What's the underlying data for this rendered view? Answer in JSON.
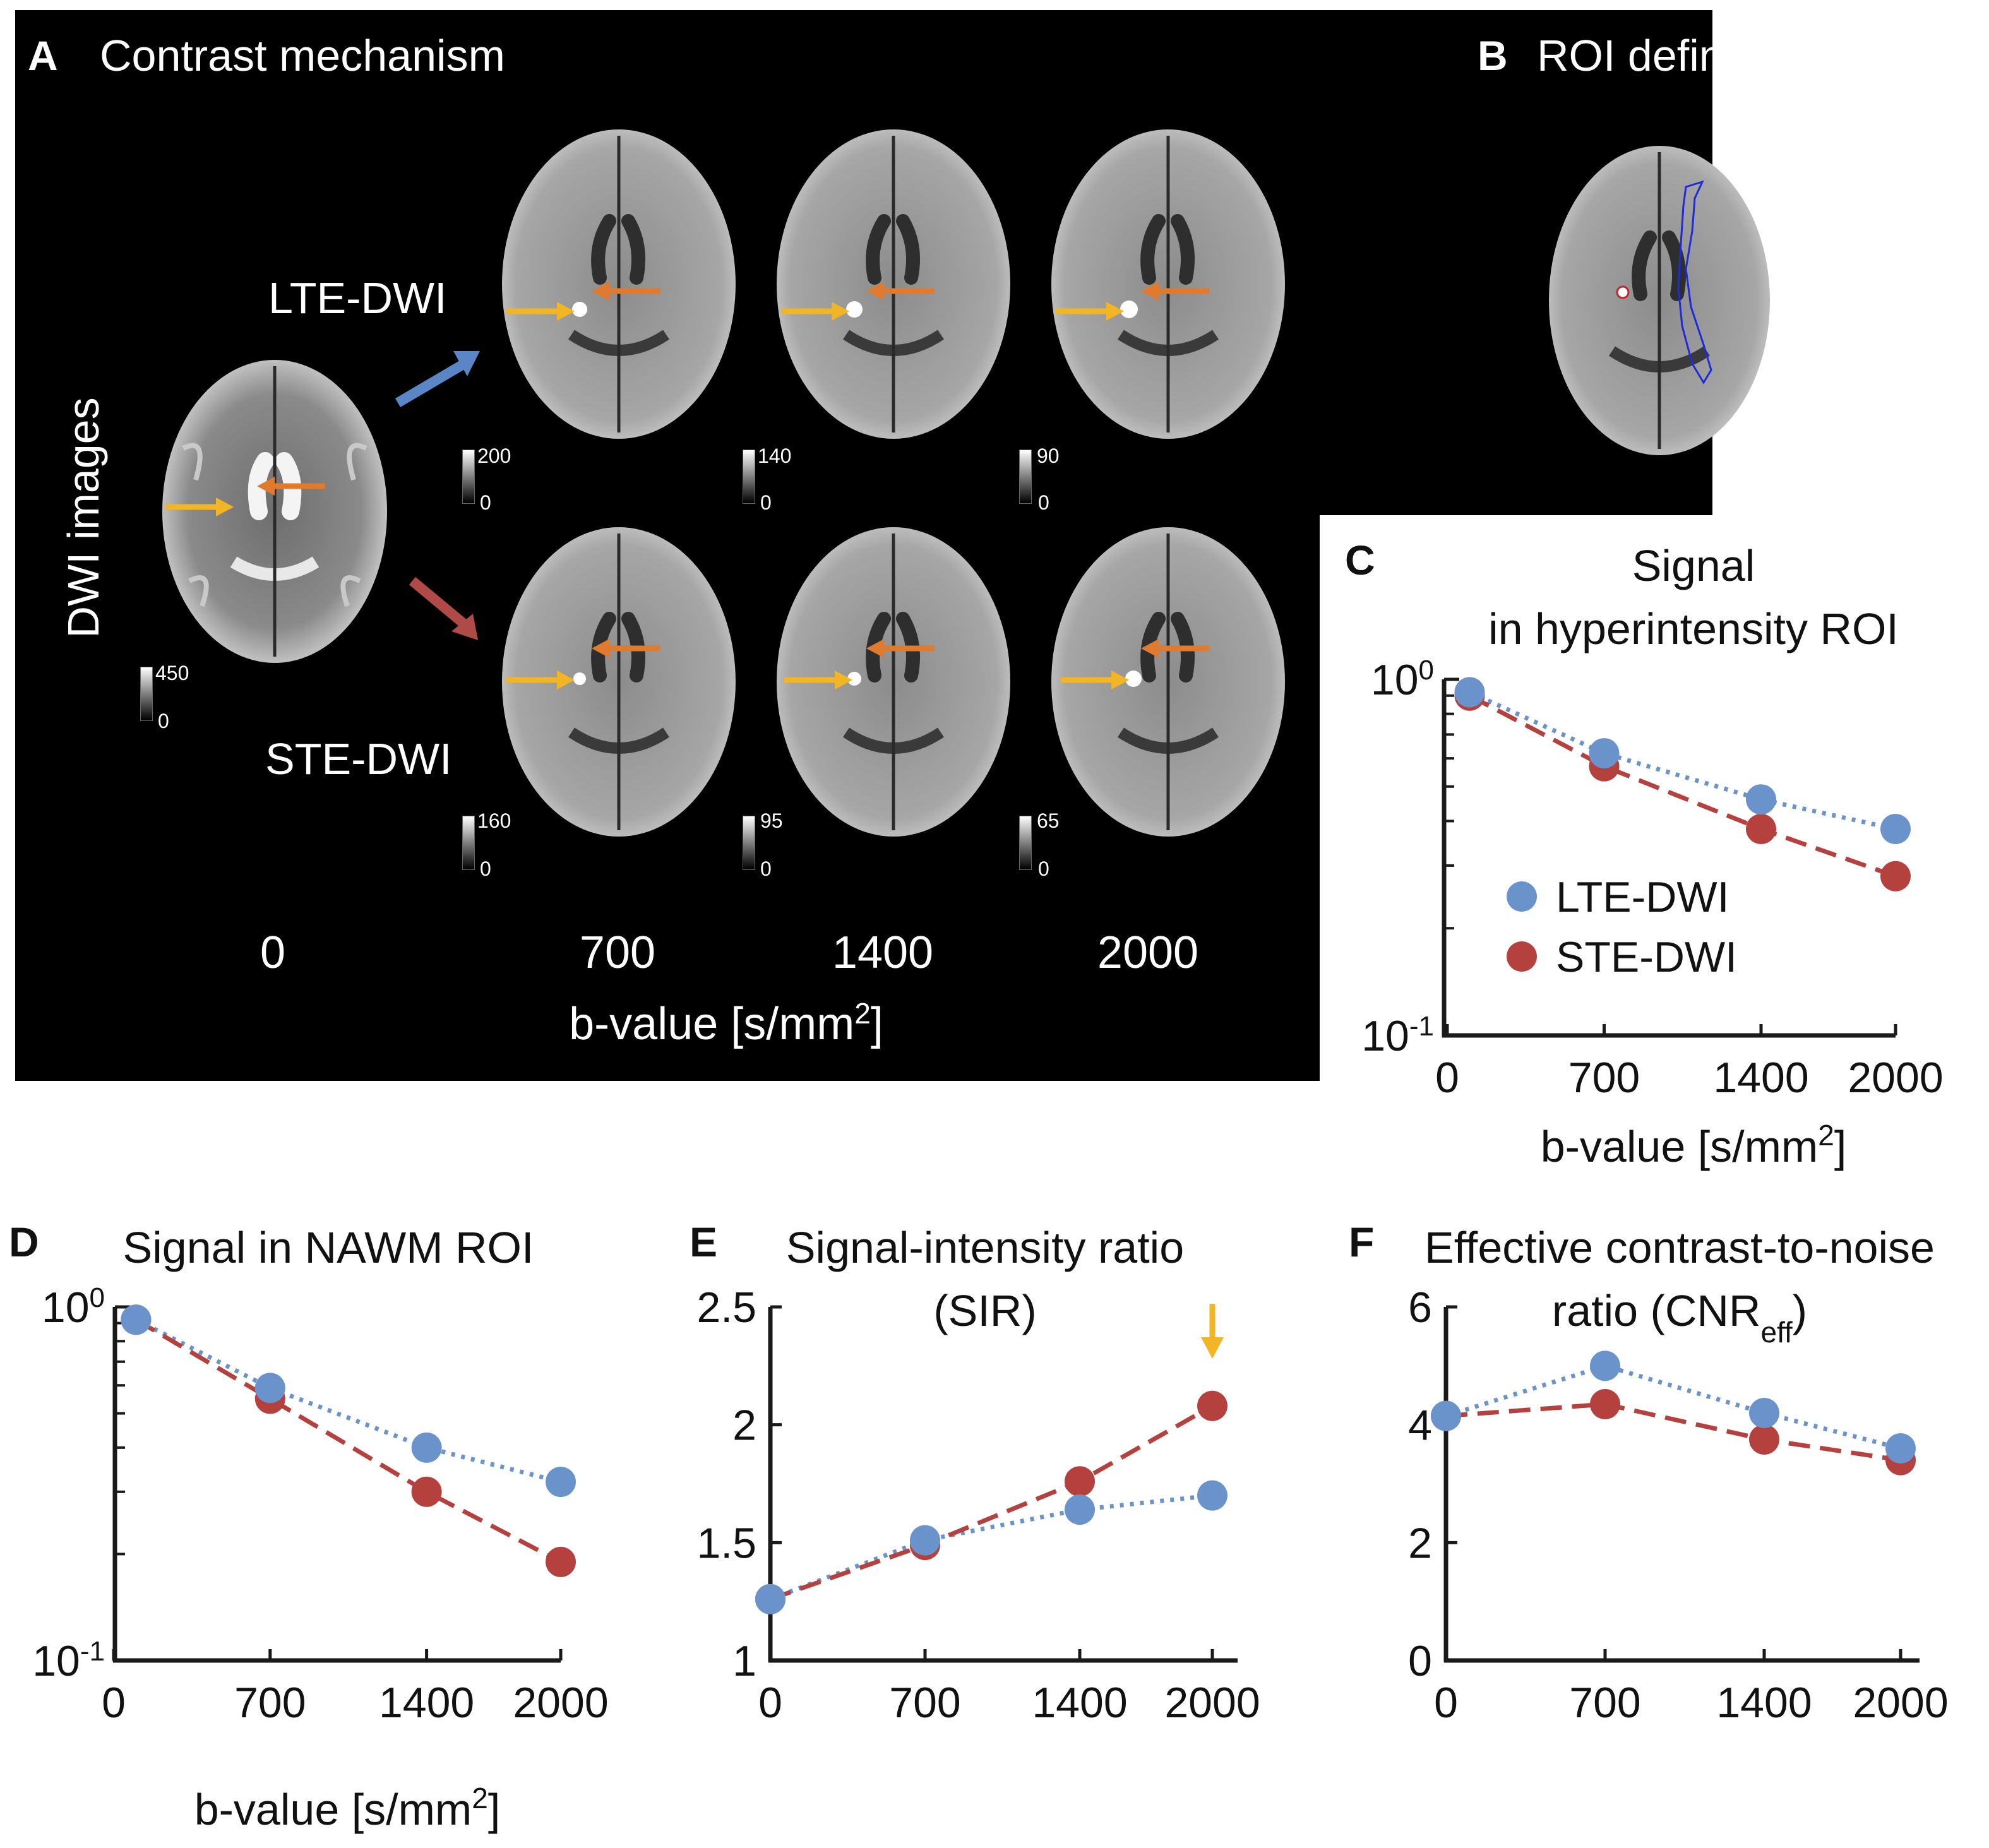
{
  "panel_a": {
    "letter": "A",
    "title": "Contrast mechanism",
    "ylabel": "DWI images",
    "row_lte": "LTE-DWI",
    "row_ste": "STE-DWI",
    "b_values": [
      "0",
      "700",
      "1400",
      "2000"
    ],
    "xlabel_main": "b-value [s/mm",
    "xlabel_sup": "2",
    "xlabel_end": "]",
    "colorbars": {
      "b0": {
        "max": "450",
        "min": "0"
      },
      "lte": [
        {
          "max": "200",
          "min": "0"
        },
        {
          "max": "140",
          "min": "0"
        },
        {
          "max": "90",
          "min": "0"
        }
      ],
      "ste": [
        {
          "max": "160",
          "min": "0"
        },
        {
          "max": "95",
          "min": "0"
        },
        {
          "max": "65",
          "min": "0"
        }
      ]
    },
    "colors": {
      "lte_arrow": "#5b86c5",
      "ste_arrow": "#b04a48",
      "yellow": "#f2b525",
      "orange": "#e07a2e"
    }
  },
  "panel_b": {
    "letter": "B",
    "title": "ROI definition"
  },
  "legend": {
    "lte": "LTE-DWI",
    "ste": "STE-DWI"
  },
  "colors": {
    "lte": "#6a93cc",
    "ste": "#b5413f"
  },
  "chart_data": [
    {
      "id": "C",
      "letter": "C",
      "type": "line",
      "title_lines": [
        "Signal",
        "in hyperintensity ROI"
      ],
      "yscale": "log",
      "ylim": [
        0.1,
        1
      ],
      "ytick_labels": [
        {
          "base": "10",
          "exp": "0"
        },
        {
          "base": "10",
          "exp": "-1"
        }
      ],
      "xtick_labels": [
        "0",
        "700",
        "1400",
        "2000"
      ],
      "xlabel": "b-value [s/mm",
      "xlabel_sup": "2",
      "xlabel_end": "]",
      "legend": "bottom-left",
      "series": [
        {
          "name": "LTE-DWI",
          "x": [
            100,
            700,
            1400,
            2000
          ],
          "y": [
            0.92,
            0.62,
            0.46,
            0.38
          ],
          "fit_end": 0.37
        },
        {
          "name": "STE-DWI",
          "x": [
            100,
            700,
            1400,
            2000
          ],
          "y": [
            0.9,
            0.57,
            0.38,
            0.28
          ],
          "fit_end": 0.26
        }
      ]
    },
    {
      "id": "D",
      "letter": "D",
      "type": "line",
      "title_lines": [
        "Signal in NAWM ROI"
      ],
      "yscale": "log",
      "ylim": [
        0.1,
        1
      ],
      "ytick_labels": [
        {
          "base": "10",
          "exp": "0"
        },
        {
          "base": "10",
          "exp": "-1"
        }
      ],
      "xtick_labels": [
        "0",
        "700",
        "1400",
        "2000"
      ],
      "xlabel": "b-value [s/mm",
      "xlabel_sup": "2",
      "xlabel_end": "]",
      "series": [
        {
          "name": "LTE-DWI",
          "x": [
            100,
            700,
            1400,
            2000
          ],
          "y": [
            0.92,
            0.59,
            0.4,
            0.32
          ],
          "fit_end": 0.32
        },
        {
          "name": "STE-DWI",
          "x": [
            100,
            700,
            1400,
            2000
          ],
          "y": [
            0.92,
            0.55,
            0.3,
            0.19
          ],
          "fit_end": 0.19
        }
      ]
    },
    {
      "id": "E",
      "letter": "E",
      "type": "line",
      "title_lines": [
        "Signal-intensity ratio",
        "(SIR)"
      ],
      "yscale": "linear",
      "ylim": [
        1,
        2.5
      ],
      "yticks": [
        1,
        1.5,
        2,
        2.5
      ],
      "ytick_labels": [
        "1",
        "1.5",
        "2",
        "2.5"
      ],
      "xtick_labels": [
        "0",
        "700",
        "1400",
        "2000"
      ],
      "highlight_arrow_at": 2000,
      "series": [
        {
          "name": "LTE-DWI",
          "x": [
            0,
            700,
            1400,
            2000
          ],
          "y": [
            1.26,
            1.51,
            1.64,
            1.7
          ]
        },
        {
          "name": "STE-DWI",
          "x": [
            0,
            700,
            1400,
            2000
          ],
          "y": [
            1.26,
            1.49,
            1.76,
            2.08
          ]
        }
      ]
    },
    {
      "id": "F",
      "letter": "F",
      "type": "line",
      "title_lines": [
        "Effective contrast-to-noise",
        "ratio (CNR"
      ],
      "title_sub": "eff",
      "title_end": ")",
      "yscale": "linear",
      "ylim": [
        0,
        6
      ],
      "yticks": [
        0,
        2,
        4,
        6
      ],
      "ytick_labels": [
        "0",
        "2",
        "4",
        "6"
      ],
      "xtick_labels": [
        "0",
        "700",
        "1400",
        "2000"
      ],
      "series": [
        {
          "name": "LTE-DWI",
          "x": [
            0,
            700,
            1400,
            2000
          ],
          "y": [
            4.15,
            5.0,
            4.2,
            3.6
          ]
        },
        {
          "name": "STE-DWI",
          "x": [
            0,
            700,
            1400,
            2000
          ],
          "y": [
            4.15,
            4.35,
            3.75,
            3.4
          ]
        }
      ]
    }
  ]
}
